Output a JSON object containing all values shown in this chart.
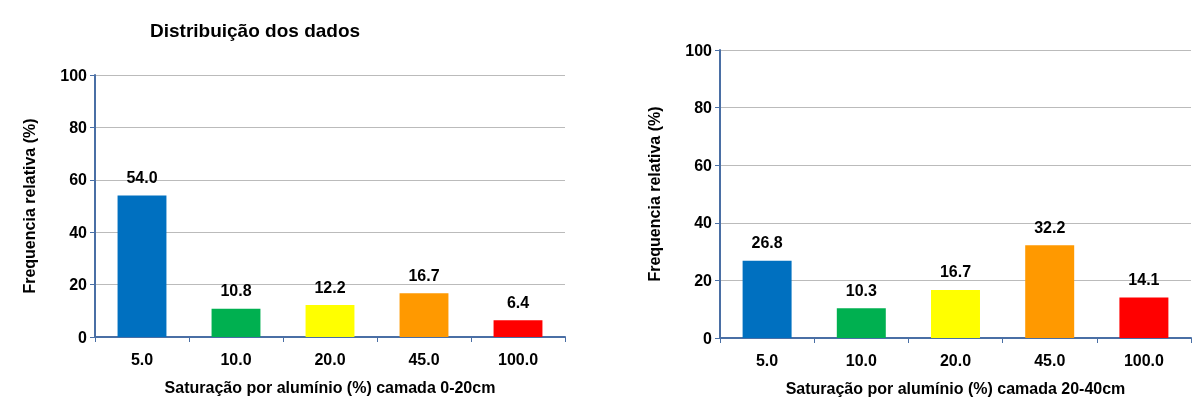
{
  "chart_data": [
    {
      "type": "bar",
      "title": "Distribuição dos dados",
      "xlabel": "Saturação por alumínio (%) camada 0-20cm",
      "ylabel": "Frequencia relativa (%)",
      "categories": [
        "5.0",
        "10.0",
        "20.0",
        "45.0",
        "100.0"
      ],
      "values": [
        54.0,
        10.8,
        12.2,
        16.7,
        6.4
      ],
      "value_labels": [
        "54.0",
        "10.8",
        "12.2",
        "16.7",
        "6.4"
      ],
      "colors": [
        "#0070c0",
        "#00b050",
        "#ffff00",
        "#ff9900",
        "#ff0000"
      ],
      "ylim": [
        0,
        100
      ],
      "yticks": [
        0,
        20,
        40,
        60,
        80,
        100
      ],
      "grid": "y"
    },
    {
      "type": "bar",
      "xlabel": "Saturação por alumínio (%) camada 20-40cm",
      "ylabel": "Frequencia relativa (%)",
      "categories": [
        "5.0",
        "10.0",
        "20.0",
        "45.0",
        "100.0"
      ],
      "values": [
        26.8,
        10.3,
        16.7,
        32.2,
        14.1
      ],
      "value_labels": [
        "26.8",
        "10.3",
        "16.7",
        "32.2",
        "14.1"
      ],
      "colors": [
        "#0070c0",
        "#00b050",
        "#ffff00",
        "#ff9900",
        "#ff0000"
      ],
      "ylim": [
        0,
        100
      ],
      "yticks": [
        0,
        20,
        40,
        60,
        80,
        100
      ],
      "grid": "y"
    }
  ]
}
